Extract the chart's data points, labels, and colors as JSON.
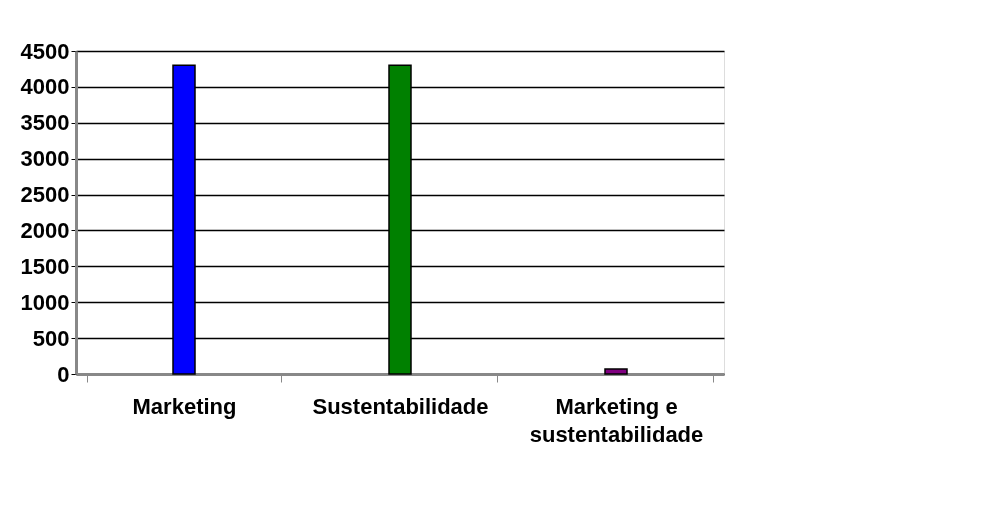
{
  "chart_data": {
    "type": "bar",
    "categories": [
      "Marketing",
      "Sustentabilidade",
      "Marketing e sustentabilidade"
    ],
    "values": [
      4300,
      4300,
      70
    ],
    "colors": [
      "#0000ff",
      "#008000",
      "#800080"
    ],
    "ylim": [
      0,
      4500
    ],
    "yticks": [
      0,
      500,
      1000,
      1500,
      2000,
      2500,
      3000,
      3500,
      4000,
      4500
    ],
    "grid": "y"
  }
}
